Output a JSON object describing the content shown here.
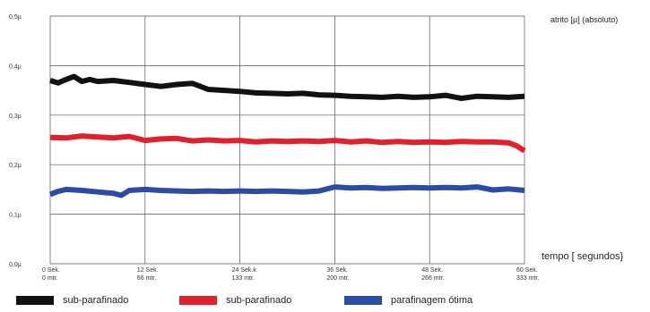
{
  "chart_data": {
    "type": "line",
    "ylabel": "atrito [µ] (absoluto)",
    "xlabel": "tempo [ segundos}",
    "ylim": [
      0,
      0.5
    ],
    "xlim": [
      0,
      60
    ],
    "y_ticks": [
      "0,5µ",
      "0,4µ",
      "0,3µ",
      "0,2µ",
      "0,1µ",
      "0,0µ"
    ],
    "y_tick_values": [
      0.5,
      0.4,
      0.3,
      0.2,
      0.1,
      0.0
    ],
    "x_ticks": [
      {
        "value": 0,
        "line1": "0 Sek.",
        "line2": "0 mtr."
      },
      {
        "value": 12,
        "line1": "12 Sek.",
        "line2": "66 mtr."
      },
      {
        "value": 24,
        "line1": "24 Sek.k",
        "line2": "133 mtr."
      },
      {
        "value": 36,
        "line1": "36 Sek.",
        "line2": "200 mtr."
      },
      {
        "value": 48,
        "line1": "48 Sek.",
        "line2": "266 mtr."
      },
      {
        "value": 60,
        "line1": "60 Sek.",
        "line2": "333 mtr."
      }
    ],
    "grid": true,
    "legend_position": "bottom",
    "series": [
      {
        "name": "sub-parafinado",
        "color": "#111111",
        "x": [
          0,
          1,
          2,
          3,
          4,
          5,
          6,
          8,
          10,
          12,
          14,
          16,
          18,
          20,
          22,
          24,
          26,
          28,
          30,
          32,
          34,
          36,
          38,
          40,
          42,
          44,
          46,
          48,
          50,
          52,
          54,
          56,
          58,
          60
        ],
        "y": [
          0.37,
          0.365,
          0.372,
          0.378,
          0.368,
          0.372,
          0.368,
          0.37,
          0.366,
          0.362,
          0.358,
          0.362,
          0.364,
          0.352,
          0.35,
          0.348,
          0.345,
          0.344,
          0.343,
          0.344,
          0.341,
          0.34,
          0.338,
          0.337,
          0.336,
          0.338,
          0.336,
          0.337,
          0.34,
          0.334,
          0.338,
          0.337,
          0.336,
          0.338
        ]
      },
      {
        "name": "sub-parafinado",
        "color": "#e0212b",
        "x": [
          0,
          2,
          4,
          6,
          8,
          10,
          12,
          14,
          16,
          18,
          20,
          22,
          24,
          26,
          28,
          30,
          32,
          34,
          36,
          38,
          40,
          42,
          44,
          46,
          48,
          50,
          52,
          54,
          56,
          58,
          59,
          60
        ],
        "y": [
          0.255,
          0.254,
          0.258,
          0.256,
          0.254,
          0.257,
          0.249,
          0.252,
          0.253,
          0.248,
          0.25,
          0.248,
          0.249,
          0.246,
          0.248,
          0.247,
          0.248,
          0.247,
          0.249,
          0.246,
          0.248,
          0.245,
          0.247,
          0.245,
          0.246,
          0.245,
          0.247,
          0.246,
          0.246,
          0.244,
          0.238,
          0.228
        ]
      },
      {
        "name": "parafinagem ótima",
        "color": "#2b4ba5",
        "x": [
          0,
          1,
          2,
          4,
          6,
          8,
          9,
          10,
          12,
          14,
          16,
          18,
          20,
          22,
          24,
          26,
          28,
          30,
          32,
          34,
          36,
          38,
          40,
          42,
          44,
          46,
          48,
          50,
          52,
          54,
          56,
          58,
          60
        ],
        "y": [
          0.14,
          0.146,
          0.15,
          0.148,
          0.145,
          0.142,
          0.138,
          0.148,
          0.15,
          0.148,
          0.147,
          0.146,
          0.147,
          0.146,
          0.147,
          0.146,
          0.147,
          0.146,
          0.145,
          0.147,
          0.155,
          0.153,
          0.154,
          0.152,
          0.153,
          0.154,
          0.153,
          0.154,
          0.153,
          0.155,
          0.149,
          0.151,
          0.148
        ]
      }
    ]
  }
}
